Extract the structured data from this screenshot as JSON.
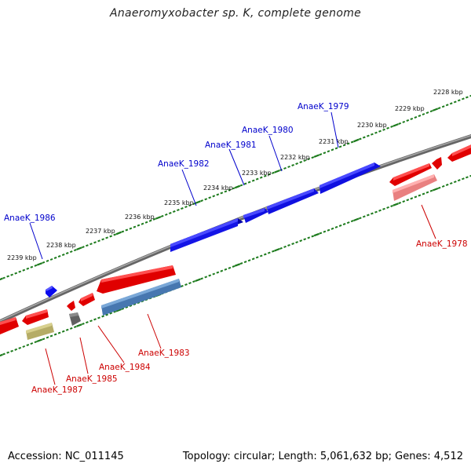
{
  "title": "Anaeromyxobacter sp. K, complete genome",
  "footer": {
    "accession": "Accession: NC_011145",
    "topology": "Topology: circular; Length: 5,061,632 bp; Genes: 4,512"
  },
  "colors": {
    "forward_strand": "#0000ee",
    "reverse_strand": "#ee0000",
    "reverse_light": "#ee7f7f",
    "blue_steel": "#4a7fb8",
    "olive": "#bdb470",
    "gray": "#6a6a6a",
    "backbone": "#777777",
    "ticks": "#1b7a1b",
    "label_forward": "#0000cc",
    "label_reverse": "#cc0000"
  },
  "scale_labels": [
    "2228 kbp",
    "2229 kbp",
    "2230 kbp",
    "2231 kbp",
    "2232 kbp",
    "2233 kbp",
    "2234 kbp",
    "2235 kbp",
    "2236 kbp",
    "2237 kbp",
    "2238 kbp",
    "2239 kbp"
  ],
  "gene_labels": {
    "forward": [
      "AnaeK_1979",
      "AnaeK_1980",
      "AnaeK_1981",
      "AnaeK_1982",
      "AnaeK_1986"
    ],
    "reverse": [
      "AnaeK_1978",
      "AnaeK_1983",
      "AnaeK_1984",
      "AnaeK_1985",
      "AnaeK_1987"
    ]
  }
}
